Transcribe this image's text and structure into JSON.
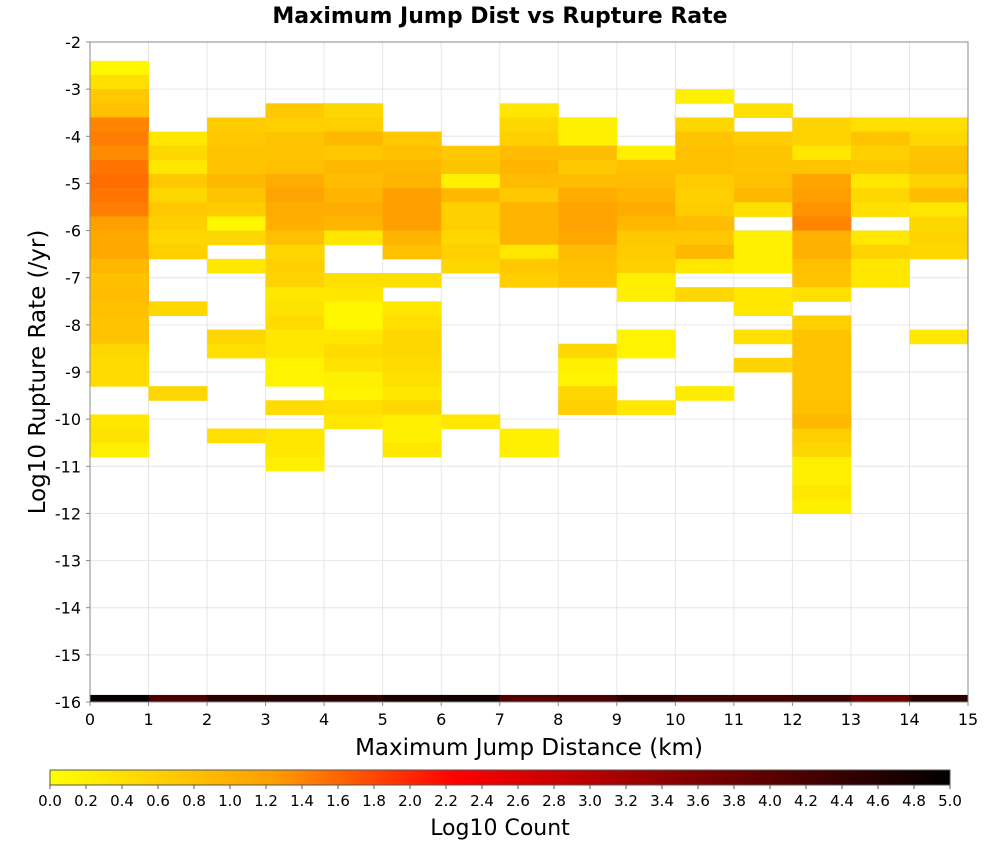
{
  "chart_data": {
    "type": "heatmap",
    "title": "Maximum Jump Dist vs Rupture Rate",
    "xlabel": "Maximum Jump Distance (km)",
    "ylabel": "Log10 Rupture Rate (/yr)",
    "xlim": [
      0,
      15
    ],
    "ylim": [
      -16,
      -2
    ],
    "x_bin_width": 1,
    "y_bin_width": 0.3,
    "xticks": [
      "0",
      "1",
      "2",
      "3",
      "4",
      "5",
      "6",
      "7",
      "8",
      "9",
      "10",
      "11",
      "12",
      "13",
      "14",
      "15"
    ],
    "yticks": [
      "-2",
      "-3",
      "-4",
      "-5",
      "-6",
      "-7",
      "-8",
      "-9",
      "-10",
      "-11",
      "-12",
      "-13",
      "-14",
      "-15",
      "-16"
    ],
    "grid": true,
    "colorbar": {
      "label": "Log10 Count",
      "min": 0.0,
      "max": 5.0,
      "ticks": [
        "0.0",
        "0.2",
        "0.4",
        "0.6",
        "0.8",
        "1.0",
        "1.2",
        "1.4",
        "1.6",
        "1.8",
        "2.0",
        "2.2",
        "2.4",
        "2.6",
        "2.8",
        "3.0",
        "3.2",
        "3.4",
        "3.6",
        "3.8",
        "4.0",
        "4.2",
        "4.4",
        "4.6",
        "4.8",
        "5.0"
      ],
      "colors": [
        "#ffff00",
        "#ff9c00",
        "#ff0000",
        "#880000",
        "#000000"
      ]
    },
    "columns": [
      {
        "x": 0,
        "cells": [
          [
            -2.55,
            0.1
          ],
          [
            -2.85,
            0.4
          ],
          [
            -3.15,
            0.7
          ],
          [
            -3.45,
            0.8
          ],
          [
            -3.75,
            1.4
          ],
          [
            -4.05,
            1.45
          ],
          [
            -4.35,
            1.35
          ],
          [
            -4.65,
            1.5
          ],
          [
            -4.95,
            1.55
          ],
          [
            -5.25,
            1.5
          ],
          [
            -5.55,
            1.45
          ],
          [
            -5.85,
            1.2
          ],
          [
            -6.15,
            1.1
          ],
          [
            -6.45,
            1.1
          ],
          [
            -6.75,
            0.9
          ],
          [
            -7.05,
            0.8
          ],
          [
            -7.35,
            0.85
          ],
          [
            -7.65,
            0.8
          ],
          [
            -7.95,
            0.75
          ],
          [
            -8.25,
            0.75
          ],
          [
            -8.55,
            0.5
          ],
          [
            -8.85,
            0.45
          ],
          [
            -9.15,
            0.45
          ],
          [
            -10.05,
            0.3
          ],
          [
            -10.35,
            0.35
          ],
          [
            -10.65,
            0.2
          ]
        ]
      },
      {
        "x": 1,
        "cells": [
          [
            -4.05,
            0.3
          ],
          [
            -4.35,
            0.5
          ],
          [
            -4.65,
            0.3
          ],
          [
            -4.95,
            0.7
          ],
          [
            -5.25,
            0.5
          ],
          [
            -5.55,
            0.7
          ],
          [
            -5.85,
            0.6
          ],
          [
            -6.15,
            0.5
          ],
          [
            -6.45,
            0.6
          ],
          [
            -7.65,
            0.5
          ],
          [
            -9.45,
            0.5
          ]
        ]
      },
      {
        "x": 2,
        "cells": [
          [
            -3.75,
            0.65
          ],
          [
            -4.05,
            0.7
          ],
          [
            -4.35,
            0.75
          ],
          [
            -4.65,
            0.75
          ],
          [
            -4.95,
            0.9
          ],
          [
            -5.25,
            0.75
          ],
          [
            -5.55,
            0.65
          ],
          [
            -5.85,
            0.1
          ],
          [
            -6.15,
            0.5
          ],
          [
            -6.75,
            0.3
          ],
          [
            -8.25,
            0.5
          ],
          [
            -8.55,
            0.4
          ],
          [
            -10.35,
            0.4
          ]
        ]
      },
      {
        "x": 3,
        "cells": [
          [
            -3.45,
            0.7
          ],
          [
            -3.75,
            0.6
          ],
          [
            -4.05,
            0.75
          ],
          [
            -4.35,
            0.75
          ],
          [
            -4.65,
            0.8
          ],
          [
            -4.95,
            1.05
          ],
          [
            -5.25,
            1.15
          ],
          [
            -5.55,
            1.05
          ],
          [
            -5.85,
            1.0
          ],
          [
            -6.15,
            0.8
          ],
          [
            -6.45,
            0.5
          ],
          [
            -6.75,
            0.6
          ],
          [
            -7.05,
            0.55
          ],
          [
            -7.35,
            0.3
          ],
          [
            -7.65,
            0.35
          ],
          [
            -7.95,
            0.45
          ],
          [
            -8.25,
            0.3
          ],
          [
            -8.55,
            0.3
          ],
          [
            -8.85,
            0.15
          ],
          [
            -9.15,
            0.15
          ],
          [
            -9.75,
            0.45
          ],
          [
            -10.35,
            0.3
          ],
          [
            -10.65,
            0.3
          ],
          [
            -10.95,
            0.2
          ]
        ]
      },
      {
        "x": 4,
        "cells": [
          [
            -3.45,
            0.5
          ],
          [
            -3.75,
            0.6
          ],
          [
            -4.05,
            0.9
          ],
          [
            -4.35,
            0.7
          ],
          [
            -4.65,
            0.9
          ],
          [
            -4.95,
            0.85
          ],
          [
            -5.25,
            0.95
          ],
          [
            -5.55,
            1.05
          ],
          [
            -5.85,
            0.95
          ],
          [
            -6.15,
            0.3
          ],
          [
            -7.05,
            0.4
          ],
          [
            -7.35,
            0.3
          ],
          [
            -7.65,
            0.1
          ],
          [
            -7.95,
            0.1
          ],
          [
            -8.25,
            0.3
          ],
          [
            -8.55,
            0.45
          ],
          [
            -8.85,
            0.35
          ],
          [
            -9.15,
            0.2
          ],
          [
            -9.45,
            0.15
          ],
          [
            -9.75,
            0.4
          ],
          [
            -10.05,
            0.3
          ]
        ]
      },
      {
        "x": 5,
        "cells": [
          [
            -4.05,
            0.7
          ],
          [
            -4.35,
            0.8
          ],
          [
            -4.65,
            0.9
          ],
          [
            -4.95,
            0.95
          ],
          [
            -5.25,
            1.2
          ],
          [
            -5.55,
            1.2
          ],
          [
            -5.85,
            1.2
          ],
          [
            -6.15,
            0.95
          ],
          [
            -6.45,
            0.8
          ],
          [
            -7.05,
            0.4
          ],
          [
            -7.65,
            0.3
          ],
          [
            -7.95,
            0.4
          ],
          [
            -8.25,
            0.5
          ],
          [
            -8.55,
            0.5
          ],
          [
            -8.85,
            0.45
          ],
          [
            -9.15,
            0.4
          ],
          [
            -9.45,
            0.3
          ],
          [
            -9.75,
            0.5
          ],
          [
            -10.05,
            0.2
          ],
          [
            -10.35,
            0.2
          ],
          [
            -10.65,
            0.3
          ]
        ]
      },
      {
        "x": 6,
        "cells": [
          [
            -4.35,
            0.7
          ],
          [
            -4.65,
            0.75
          ],
          [
            -4.95,
            0.2
          ],
          [
            -5.25,
            0.9
          ],
          [
            -5.55,
            0.6
          ],
          [
            -5.85,
            0.6
          ],
          [
            -6.15,
            0.5
          ],
          [
            -6.45,
            0.6
          ],
          [
            -6.75,
            0.5
          ],
          [
            -10.05,
            0.3
          ]
        ]
      },
      {
        "x": 7,
        "cells": [
          [
            -3.45,
            0.3
          ],
          [
            -3.75,
            0.5
          ],
          [
            -4.05,
            0.6
          ],
          [
            -4.35,
            0.85
          ],
          [
            -4.65,
            0.95
          ],
          [
            -4.95,
            0.85
          ],
          [
            -5.25,
            0.7
          ],
          [
            -5.55,
            0.95
          ],
          [
            -5.85,
            0.95
          ],
          [
            -6.15,
            0.95
          ],
          [
            -6.45,
            0.3
          ],
          [
            -6.75,
            0.7
          ],
          [
            -7.05,
            0.6
          ],
          [
            -10.35,
            0.2
          ],
          [
            -10.65,
            0.2
          ]
        ]
      },
      {
        "x": 8,
        "cells": [
          [
            -3.75,
            0.2
          ],
          [
            -4.05,
            0.2
          ],
          [
            -4.35,
            0.85
          ],
          [
            -4.65,
            0.7
          ],
          [
            -4.95,
            0.85
          ],
          [
            -5.25,
            1.05
          ],
          [
            -5.55,
            1.15
          ],
          [
            -5.85,
            1.15
          ],
          [
            -6.15,
            1.1
          ],
          [
            -6.45,
            0.85
          ],
          [
            -6.75,
            0.8
          ],
          [
            -7.05,
            0.75
          ],
          [
            -8.55,
            0.5
          ],
          [
            -8.85,
            0.2
          ],
          [
            -9.15,
            0.15
          ],
          [
            -9.45,
            0.5
          ],
          [
            -9.75,
            0.6
          ]
        ]
      },
      {
        "x": 9,
        "cells": [
          [
            -4.35,
            0.2
          ],
          [
            -4.65,
            0.8
          ],
          [
            -4.95,
            0.85
          ],
          [
            -5.25,
            0.95
          ],
          [
            -5.55,
            1.05
          ],
          [
            -5.85,
            0.9
          ],
          [
            -6.15,
            0.7
          ],
          [
            -6.45,
            0.65
          ],
          [
            -6.75,
            0.6
          ],
          [
            -7.05,
            0.2
          ],
          [
            -7.35,
            0.2
          ],
          [
            -8.25,
            0.15
          ],
          [
            -8.55,
            0.15
          ],
          [
            -9.75,
            0.3
          ]
        ]
      },
      {
        "x": 10,
        "cells": [
          [
            -3.15,
            0.2
          ],
          [
            -3.75,
            0.5
          ],
          [
            -4.05,
            0.75
          ],
          [
            -4.35,
            0.8
          ],
          [
            -4.65,
            0.8
          ],
          [
            -4.95,
            0.65
          ],
          [
            -5.25,
            0.6
          ],
          [
            -5.55,
            0.65
          ],
          [
            -5.85,
            0.85
          ],
          [
            -6.15,
            0.7
          ],
          [
            -6.45,
            0.9
          ],
          [
            -6.75,
            0.3
          ],
          [
            -7.35,
            0.5
          ],
          [
            -9.45,
            0.25
          ]
        ]
      },
      {
        "x": 11,
        "cells": [
          [
            -3.45,
            0.4
          ],
          [
            -4.05,
            0.65
          ],
          [
            -4.35,
            0.75
          ],
          [
            -4.65,
            0.75
          ],
          [
            -4.95,
            0.8
          ],
          [
            -5.25,
            0.9
          ],
          [
            -5.55,
            0.4
          ],
          [
            -6.15,
            0.2
          ],
          [
            -6.45,
            0.2
          ],
          [
            -6.75,
            0.2
          ],
          [
            -7.35,
            0.3
          ],
          [
            -7.65,
            0.3
          ],
          [
            -8.25,
            0.4
          ],
          [
            -8.85,
            0.55
          ]
        ]
      },
      {
        "x": 12,
        "cells": [
          [
            -3.75,
            0.55
          ],
          [
            -4.05,
            0.55
          ],
          [
            -4.35,
            0.3
          ],
          [
            -4.65,
            0.75
          ],
          [
            -4.95,
            1.15
          ],
          [
            -5.25,
            1.2
          ],
          [
            -5.55,
            1.3
          ],
          [
            -5.85,
            1.4
          ],
          [
            -6.15,
            1.0
          ],
          [
            -6.45,
            1.0
          ],
          [
            -6.75,
            0.8
          ],
          [
            -7.05,
            0.75
          ],
          [
            -7.35,
            0.4
          ],
          [
            -7.95,
            0.6
          ],
          [
            -8.25,
            0.75
          ],
          [
            -8.55,
            0.75
          ],
          [
            -8.85,
            0.75
          ],
          [
            -9.15,
            0.75
          ],
          [
            -9.45,
            0.75
          ],
          [
            -9.75,
            0.8
          ],
          [
            -10.05,
            0.9
          ],
          [
            -10.35,
            0.6
          ],
          [
            -10.65,
            0.5
          ],
          [
            -10.95,
            0.2
          ],
          [
            -11.25,
            0.2
          ],
          [
            -11.55,
            0.3
          ],
          [
            -11.85,
            0.2
          ]
        ]
      },
      {
        "x": 13,
        "cells": [
          [
            -3.75,
            0.4
          ],
          [
            -4.05,
            0.75
          ],
          [
            -4.35,
            0.6
          ],
          [
            -4.65,
            0.7
          ],
          [
            -4.95,
            0.3
          ],
          [
            -5.25,
            0.5
          ],
          [
            -5.55,
            0.4
          ],
          [
            -6.15,
            0.3
          ],
          [
            -6.45,
            0.55
          ],
          [
            -6.75,
            0.3
          ],
          [
            -7.05,
            0.3
          ]
        ]
      },
      {
        "x": 14,
        "cells": [
          [
            -3.75,
            0.4
          ],
          [
            -4.05,
            0.5
          ],
          [
            -4.35,
            0.75
          ],
          [
            -4.65,
            0.8
          ],
          [
            -4.95,
            0.55
          ],
          [
            -5.25,
            0.85
          ],
          [
            -5.55,
            0.3
          ],
          [
            -5.85,
            0.5
          ],
          [
            -6.15,
            0.55
          ],
          [
            -6.45,
            0.5
          ],
          [
            -8.25,
            0.3
          ]
        ]
      }
    ],
    "bottom_row": {
      "y": -16,
      "values": [
        4.9,
        4.2,
        4.5,
        4.6,
        4.5,
        4.75,
        4.8,
        4.1,
        4.2,
        4.5,
        4.3,
        4.25,
        4.35,
        3.9,
        4.55
      ]
    }
  }
}
